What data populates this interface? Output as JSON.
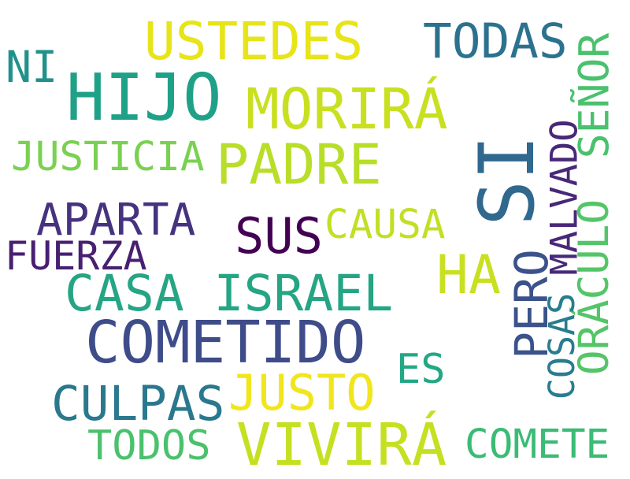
{
  "words": [
    {
      "text": "HIJO",
      "color": "#1fa187"
    },
    {
      "text": "COMETIDO",
      "color": "#3e4c8a"
    },
    {
      "text": "SI",
      "color": "#31688e"
    },
    {
      "text": "VIVIRÁ",
      "color": "#c5e021"
    },
    {
      "text": "PADRE",
      "color": "#b8de29"
    },
    {
      "text": "MORIRÁ",
      "color": "#c8e020"
    },
    {
      "text": "USTEDES",
      "color": "#e7e419"
    },
    {
      "text": "CASA ISRAEL",
      "color": "#25a584"
    },
    {
      "text": "TODAS",
      "color": "#2c728e"
    },
    {
      "text": "SEÑOR",
      "color": "#4ac16d"
    },
    {
      "text": "ORÁCULO",
      "color": "#54c568"
    },
    {
      "text": "MALVADO",
      "color": "#482878"
    },
    {
      "text": "PERO",
      "color": "#3b528b"
    },
    {
      "text": "COSAS",
      "color": "#287d8e"
    },
    {
      "text": "HA",
      "color": "#c8e020"
    },
    {
      "text": "APARTA",
      "color": "#46327e"
    },
    {
      "text": "SUS",
      "color": "#440154"
    },
    {
      "text": "CAUSA",
      "color": "#c2df23"
    },
    {
      "text": "FUERZA",
      "color": "#481f71"
    },
    {
      "text": "JUSTICIA",
      "color": "#7ad151"
    },
    {
      "text": "JUSTO",
      "color": "#f1e51d"
    },
    {
      "text": "CULPAS",
      "color": "#2a788e"
    },
    {
      "text": "TODOS",
      "color": "#4ac16d"
    },
    {
      "text": "COMETE",
      "color": "#3bbb75"
    },
    {
      "text": "ES",
      "color": "#22a884"
    },
    {
      "text": "NI",
      "color": "#21918c"
    }
  ]
}
